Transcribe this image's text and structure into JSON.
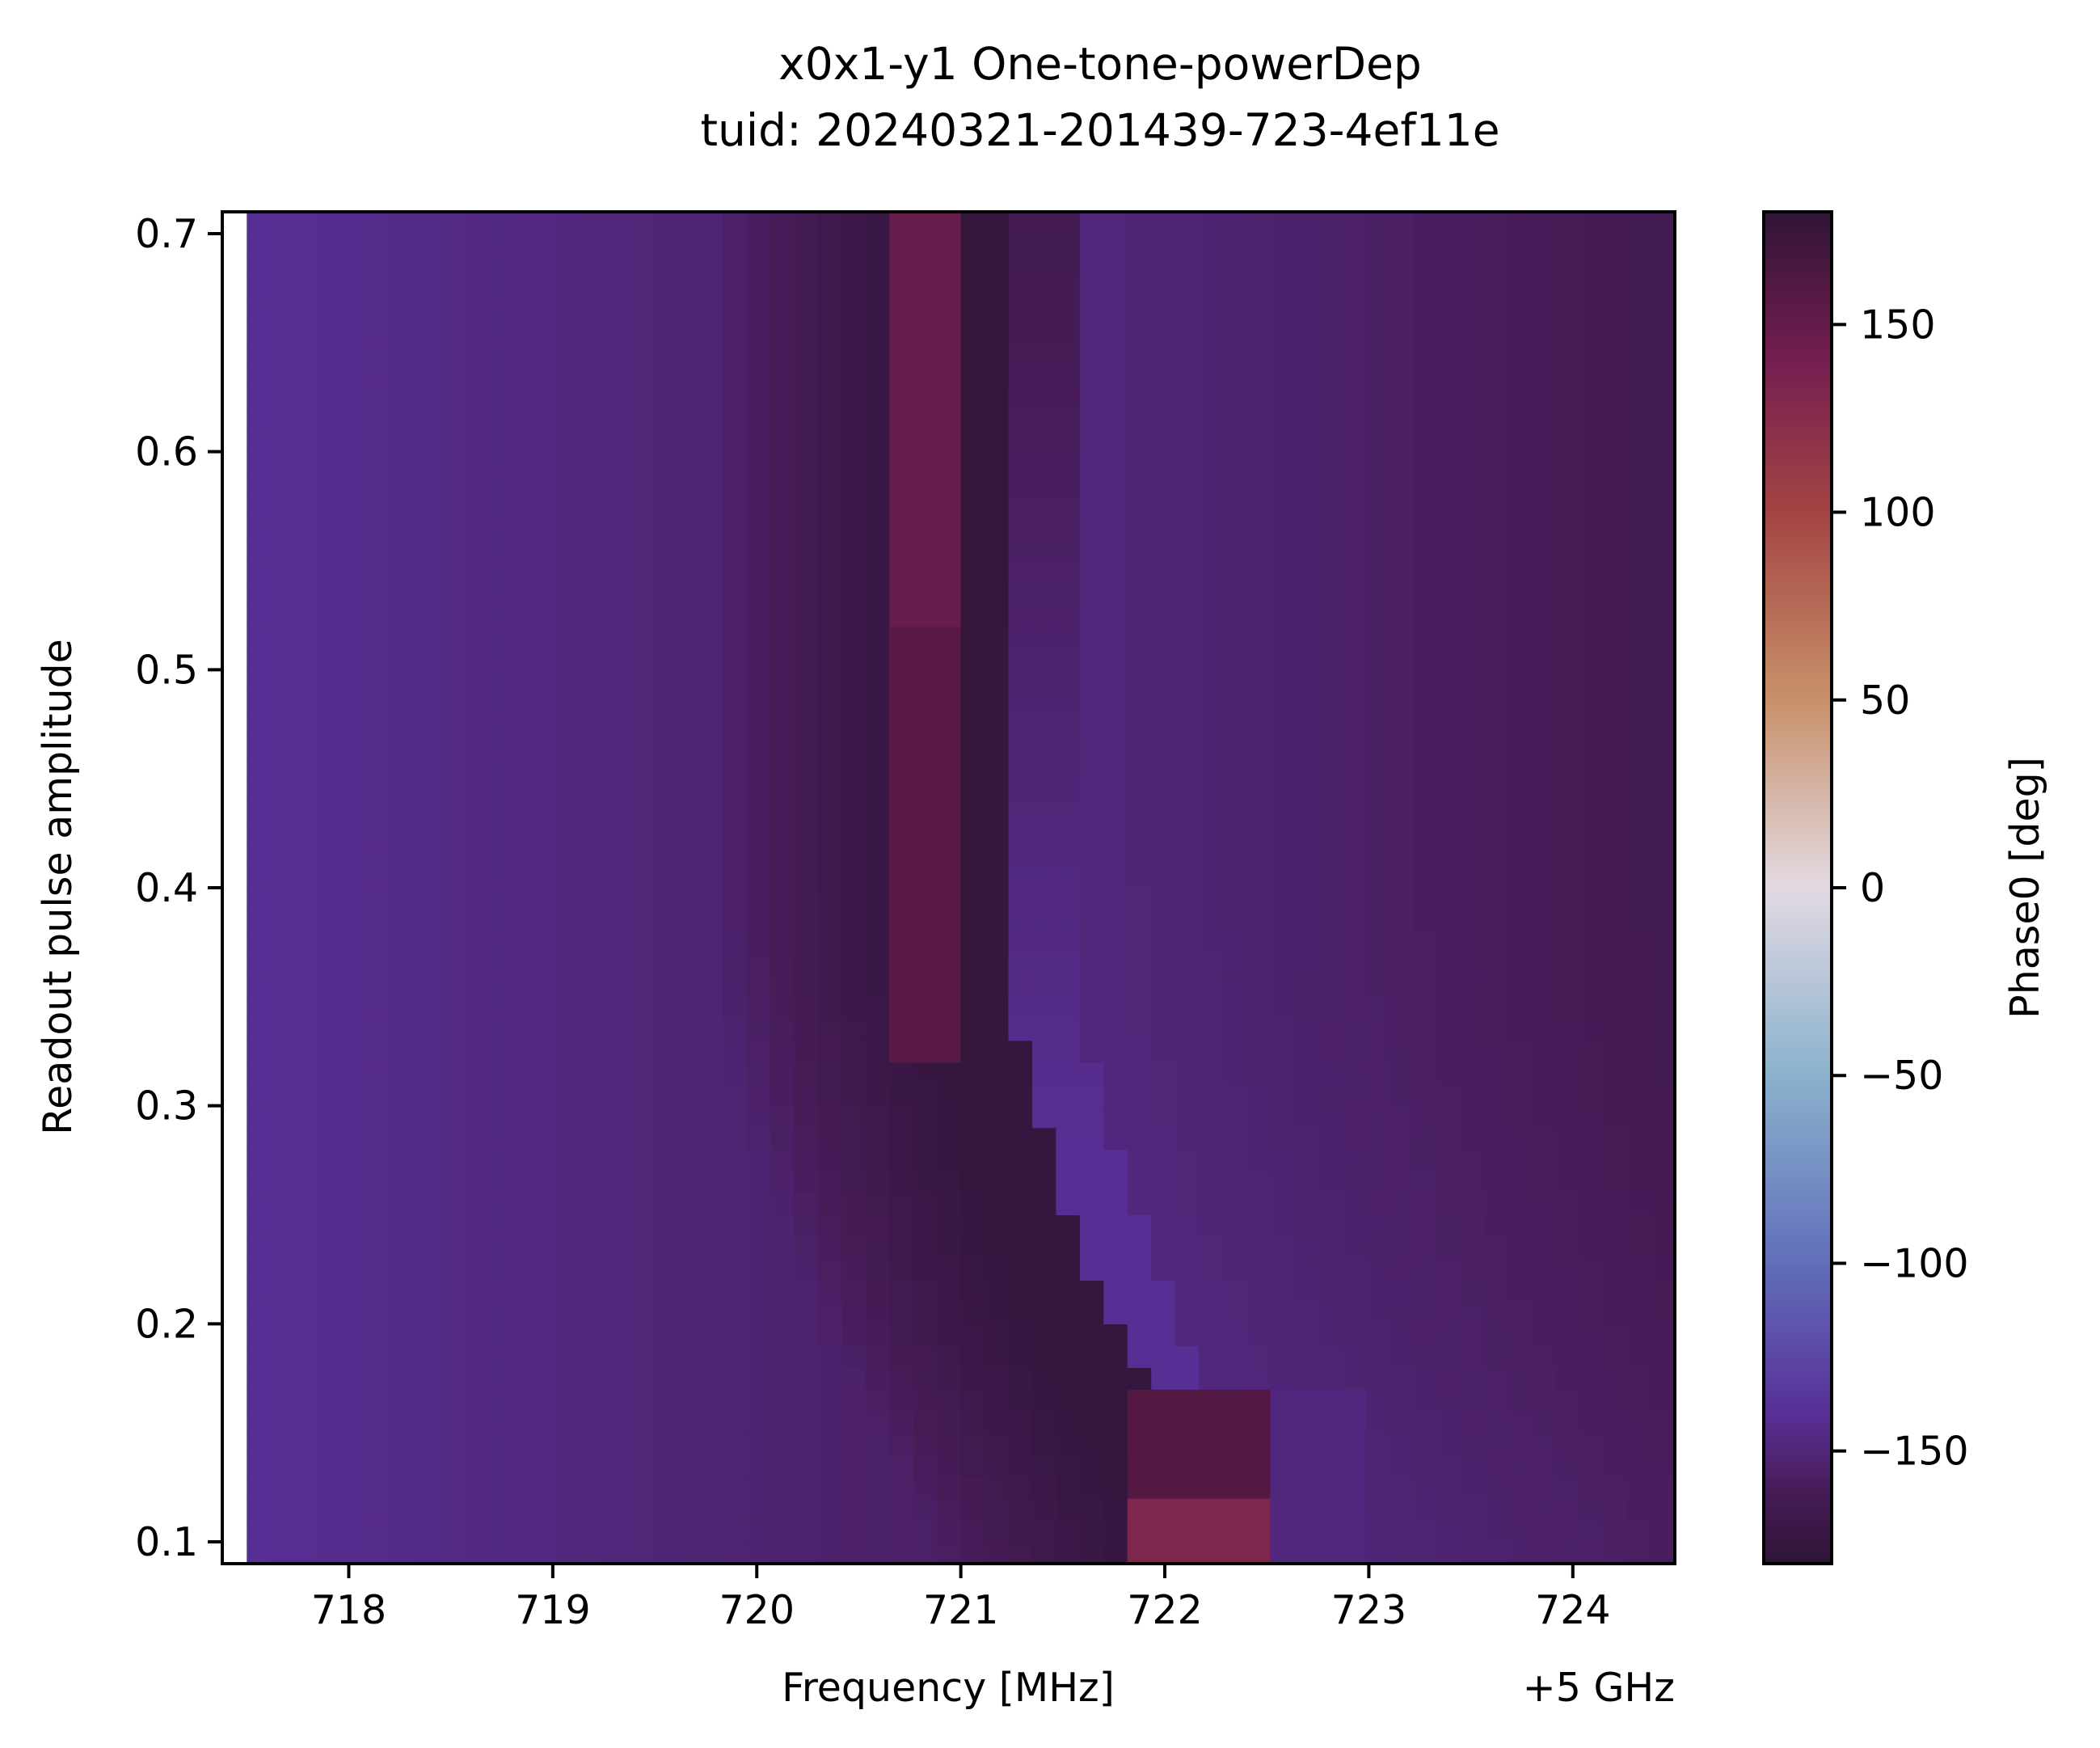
{
  "chart_data": {
    "type": "heatmap",
    "title": "x0x1-y1 One-tone-powerDep",
    "subtitle": "tuid: 20240321-201439-723-4ef11e",
    "xlabel": "Frequency [MHz]",
    "x_offset_label": "+5 GHz",
    "ylabel": "Readout pulse amplitude",
    "colorbar_label": "Phase0 [deg]",
    "colormap": "twilight_shifted",
    "xlim": [
      717.38,
      724.5
    ],
    "ylim": [
      0.09,
      0.71
    ],
    "clim": [
      -180,
      180
    ],
    "x_ticks": [
      718,
      719,
      720,
      721,
      722,
      723,
      724
    ],
    "x_tick_labels": [
      "718",
      "719",
      "720",
      "721",
      "722",
      "723",
      "724"
    ],
    "y_ticks": [
      0.1,
      0.2,
      0.3,
      0.4,
      0.5,
      0.6,
      0.7
    ],
    "y_tick_labels": [
      "0.1",
      "0.2",
      "0.3",
      "0.4",
      "0.5",
      "0.6",
      "0.7"
    ],
    "colorbar_ticks": [
      150,
      100,
      50,
      0,
      -50,
      -100,
      -150
    ],
    "colorbar_tick_labels": [
      "150",
      "100",
      "50",
      "0",
      "−50",
      "−100",
      "−150"
    ],
    "grid": false,
    "frequency_start": 717.5,
    "frequency_stop": 724.5,
    "frequency_points": 60,
    "amplitude_start": 0.09,
    "amplitude_stop": 0.71,
    "amplitude_points": 62,
    "resonance_curve": {
      "amplitudes": [
        0.1,
        0.15,
        0.2,
        0.25,
        0.3,
        0.35,
        0.4,
        0.5,
        0.6,
        0.71
      ],
      "frequencies": [
        722.25,
        721.95,
        721.65,
        721.45,
        721.28,
        721.15,
        721.12,
        721.12,
        721.12,
        721.12
      ]
    },
    "red_band": {
      "low_amplitude_start": 0.1,
      "low_amplitude_stop": 0.17,
      "low_band_x": [
        721.8,
        722.5
      ],
      "upper_band_frequency": [
        720.7,
        721.0
      ],
      "upper_band_amplitude": [
        0.32,
        0.71
      ]
    }
  }
}
